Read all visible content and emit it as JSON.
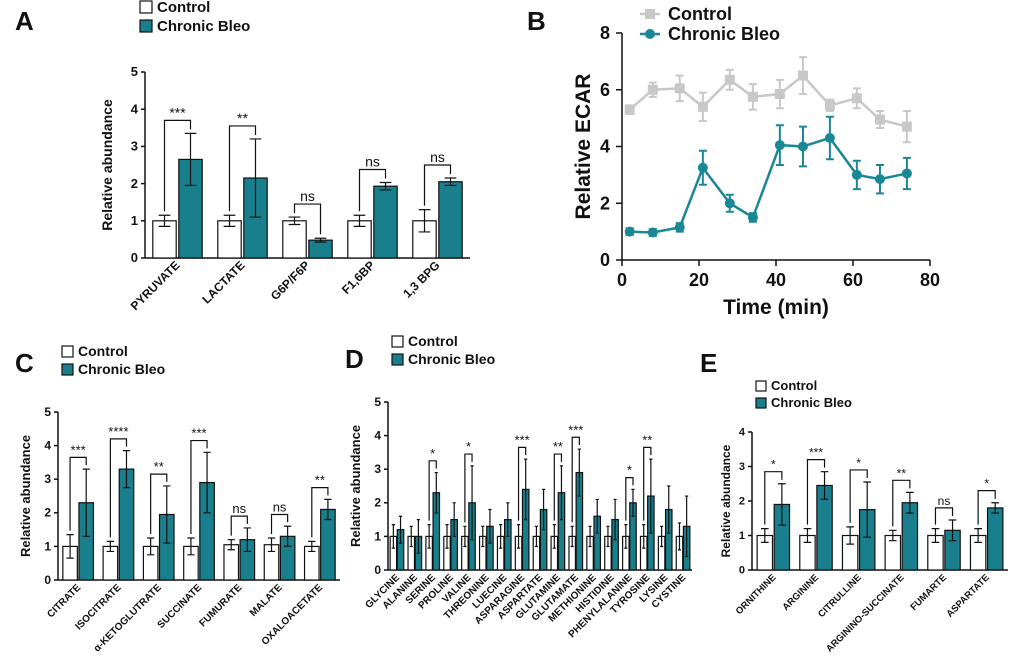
{
  "chart_data": [
    {
      "type": "bar",
      "panel": "A",
      "y_label": "Relative abundance",
      "categories": [
        "PYRUVATE",
        "LACTATE",
        "G6P/F6P",
        "F1,6BP",
        "1,3 BPG"
      ],
      "series": [
        {
          "name": "Control",
          "color": "#ffffff",
          "values": [
            1.0,
            1.0,
            1.0,
            1.0,
            1.0
          ],
          "errors": [
            0.15,
            0.15,
            0.1,
            0.15,
            0.3
          ]
        },
        {
          "name": "Chronic Bleo",
          "color": "#1a7f8c",
          "values": [
            2.65,
            2.15,
            0.48,
            1.93,
            2.05
          ],
          "errors": [
            0.7,
            1.05,
            0.05,
            0.1,
            0.1
          ]
        }
      ],
      "significance": [
        "***",
        "**",
        "ns",
        "ns",
        "ns"
      ],
      "ylim": [
        0,
        5
      ],
      "yticks": [
        0,
        1,
        2,
        3,
        4,
        5
      ]
    },
    {
      "type": "line",
      "panel": "B",
      "x_label": "Time (min)",
      "y_label": "Relative ECAR",
      "x": [
        2,
        8,
        15,
        21,
        28,
        34,
        41,
        47,
        54,
        61,
        67,
        74
      ],
      "series": [
        {
          "name": "Control",
          "color": "#c8c8c8",
          "marker": "square",
          "values": [
            5.3,
            6.0,
            6.05,
            5.4,
            6.35,
            5.75,
            5.85,
            6.5,
            5.45,
            5.7,
            4.95,
            4.7
          ],
          "errors": [
            0.15,
            0.25,
            0.45,
            0.5,
            0.35,
            0.45,
            0.5,
            0.65,
            0.2,
            0.35,
            0.3,
            0.55
          ]
        },
        {
          "name": "Chronic Bleo",
          "color": "#1a8794",
          "marker": "circle",
          "values": [
            1.0,
            0.97,
            1.15,
            3.25,
            2.0,
            1.5,
            4.05,
            4.0,
            4.3,
            3.0,
            2.85,
            3.05
          ],
          "errors": [
            0.12,
            0.12,
            0.15,
            0.6,
            0.3,
            0.15,
            0.7,
            0.7,
            0.75,
            0.5,
            0.5,
            0.55
          ]
        }
      ],
      "xlim": [
        0,
        80
      ],
      "xticks": [
        0,
        20,
        40,
        60,
        80
      ],
      "ylim": [
        0,
        8
      ],
      "yticks": [
        0,
        2,
        4,
        6,
        8
      ]
    },
    {
      "type": "bar",
      "panel": "C",
      "y_label": "Relative abundance",
      "categories": [
        "CITRATE",
        "ISOCITRATE",
        "α-KETOGLUTRATE",
        "SUCCINATE",
        "FUMURATE",
        "MALATE",
        "OXALOACETATE"
      ],
      "series": [
        {
          "name": "Control",
          "color": "#ffffff",
          "values": [
            1.0,
            1.0,
            1.0,
            1.0,
            1.05,
            1.05,
            1.0
          ],
          "errors": [
            0.35,
            0.15,
            0.25,
            0.25,
            0.15,
            0.2,
            0.15
          ]
        },
        {
          "name": "Chronic Bleo",
          "color": "#1a7f8c",
          "values": [
            2.3,
            3.3,
            1.95,
            2.9,
            1.2,
            1.3,
            2.1
          ],
          "errors": [
            1.0,
            0.55,
            0.85,
            0.9,
            0.35,
            0.3,
            0.3
          ]
        }
      ],
      "significance": [
        "***",
        "****",
        "**",
        "***",
        "ns",
        "ns",
        "**"
      ],
      "ylim": [
        0,
        5
      ],
      "yticks": [
        0,
        1,
        2,
        3,
        4,
        5
      ]
    },
    {
      "type": "bar",
      "panel": "D",
      "y_label": "Relative abundance",
      "categories": [
        "GLYCINE",
        "ALANINE",
        "SERINE",
        "PROLINE",
        "VALINE",
        "THREONINE",
        "LUECINE",
        "ASPARAGINE",
        "ASPARTATE",
        "GLUTAMINE",
        "GLUTAMATE",
        "METHIONINE",
        "HISTIDINE",
        "PHENYLALANINE",
        "TYROSINE",
        "LYSINE",
        "CYSTINE"
      ],
      "series": [
        {
          "name": "Control",
          "color": "#ffffff",
          "values": [
            1.0,
            1.0,
            1.0,
            1.0,
            1.0,
            1.0,
            1.0,
            1.0,
            1.0,
            1.0,
            1.0,
            1.0,
            1.0,
            1.0,
            1.0,
            1.0,
            1.0
          ],
          "errors": [
            0.35,
            0.3,
            0.35,
            0.35,
            0.3,
            0.3,
            0.35,
            0.35,
            0.3,
            0.35,
            0.3,
            0.3,
            0.3,
            0.35,
            0.35,
            0.3,
            0.4
          ]
        },
        {
          "name": "Chronic Bleo",
          "color": "#1a7f8c",
          "values": [
            1.2,
            1.0,
            2.3,
            1.5,
            2.0,
            1.3,
            1.5,
            2.4,
            1.8,
            2.3,
            2.9,
            1.6,
            1.5,
            2.0,
            2.2,
            1.8,
            1.3
          ],
          "errors": [
            0.4,
            0.5,
            0.6,
            0.5,
            1.1,
            0.5,
            0.5,
            0.9,
            0.6,
            0.8,
            0.7,
            0.5,
            0.6,
            0.4,
            1.1,
            0.7,
            0.9
          ]
        }
      ],
      "significance": [
        null,
        null,
        "*",
        null,
        "*",
        null,
        null,
        "***",
        null,
        "**",
        "***",
        null,
        null,
        "*",
        "**",
        null,
        null
      ],
      "ylim": [
        0,
        5
      ],
      "yticks": [
        0,
        1,
        2,
        3,
        4,
        5
      ]
    },
    {
      "type": "bar",
      "panel": "E",
      "y_label": "Relative abundance",
      "categories": [
        "ORNITHINE",
        "ARGININE",
        "CITRULLINE",
        "ARGININO-SUCCINATE",
        "FUMARTE",
        "ASPARTATE"
      ],
      "series": [
        {
          "name": "Control",
          "color": "#ffffff",
          "values": [
            1.0,
            1.0,
            1.0,
            1.0,
            1.0,
            1.0
          ],
          "errors": [
            0.2,
            0.2,
            0.25,
            0.15,
            0.2,
            0.2
          ]
        },
        {
          "name": "Chronic Bleo",
          "color": "#1a7f8c",
          "values": [
            1.9,
            2.45,
            1.75,
            1.95,
            1.15,
            1.8
          ],
          "errors": [
            0.6,
            0.4,
            0.8,
            0.3,
            0.3,
            0.15
          ]
        }
      ],
      "significance": [
        "*",
        "***",
        "*",
        "**",
        "ns",
        "*"
      ],
      "ylim": [
        0,
        4
      ],
      "yticks": [
        0,
        1,
        2,
        3,
        4
      ]
    }
  ]
}
